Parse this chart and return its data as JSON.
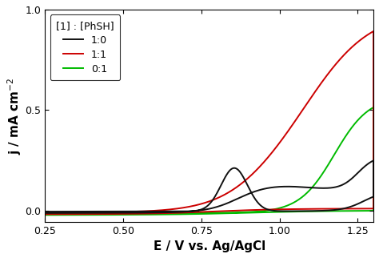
{
  "xlim": [
    0.25,
    1.3
  ],
  "ylim": [
    -0.055,
    1.0
  ],
  "xlabel": "E / V vs. Ag/AgCl",
  "legend_title": "[1] : [PhSH]",
  "legend_entries": [
    "1:0",
    "1:1",
    "0:1"
  ],
  "line_colors": [
    "#111111",
    "#cc0000",
    "#00bb00"
  ],
  "xticks": [
    0.25,
    0.5,
    0.75,
    1.0,
    1.25
  ],
  "yticks": [
    0.0,
    0.5,
    1.0
  ],
  "background": "#ffffff",
  "lw": 1.4
}
